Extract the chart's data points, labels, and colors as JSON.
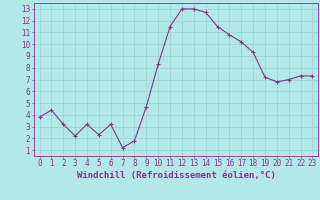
{
  "x": [
    0,
    1,
    2,
    3,
    4,
    5,
    6,
    7,
    8,
    9,
    10,
    11,
    12,
    13,
    14,
    15,
    16,
    17,
    18,
    19,
    20,
    21,
    22,
    23
  ],
  "y": [
    3.8,
    4.4,
    3.2,
    2.2,
    3.2,
    2.3,
    3.2,
    1.2,
    1.8,
    4.7,
    8.3,
    11.5,
    13.0,
    13.0,
    12.7,
    11.5,
    10.8,
    10.2,
    9.3,
    7.2,
    6.8,
    7.0,
    7.3,
    7.3
  ],
  "line_color": "#883388",
  "marker_color": "#883388",
  "bg_color": "#b3e8e8",
  "grid_color": "#9ed4d4",
  "axis_color": "#883388",
  "tick_color": "#883388",
  "label_color": "#883388",
  "xlim": [
    -0.5,
    23.5
  ],
  "ylim": [
    0.5,
    13.5
  ],
  "yticks": [
    1,
    2,
    3,
    4,
    5,
    6,
    7,
    8,
    9,
    10,
    11,
    12,
    13
  ],
  "xticks": [
    0,
    1,
    2,
    3,
    4,
    5,
    6,
    7,
    8,
    9,
    10,
    11,
    12,
    13,
    14,
    15,
    16,
    17,
    18,
    19,
    20,
    21,
    22,
    23
  ],
  "xlabel": "Windchill (Refroidissement éolien,°C)",
  "xlabel_fontsize": 6.5,
  "tick_fontsize": 5.5,
  "figsize": [
    3.2,
    2.0
  ],
  "dpi": 100
}
